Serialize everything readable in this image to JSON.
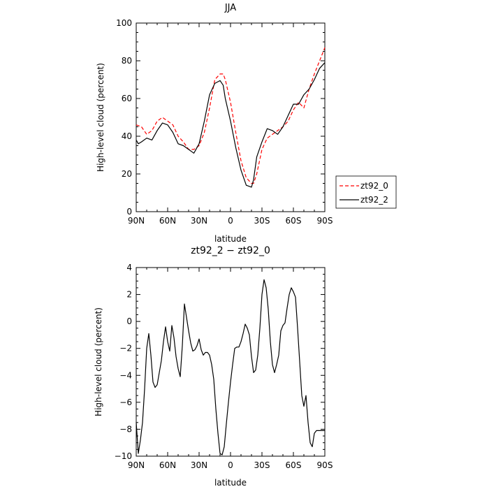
{
  "chart_data": [
    {
      "type": "line",
      "title": "JJA",
      "xlabel": "latitude",
      "ylabel": "High-level cloud (percent)",
      "xlim": [
        -90,
        90
      ],
      "ylim": [
        0,
        100
      ],
      "xticks": [
        -90,
        -60,
        -30,
        0,
        30,
        60,
        90
      ],
      "xticklabels": [
        "90N",
        "60N",
        "30N",
        "0",
        "30S",
        "60S",
        "90S"
      ],
      "yticks": [
        0,
        20,
        40,
        60,
        80,
        100
      ],
      "yticklabels": [
        "0",
        "20",
        "40",
        "60",
        "80",
        "100"
      ],
      "grid": false,
      "legend": "right",
      "series": [
        {
          "name": "zt92_0",
          "color": "#ff0000",
          "dash": "dashed",
          "x": [
            -90,
            -85,
            -80,
            -75,
            -70,
            -65,
            -60,
            -55,
            -50,
            -45,
            -40,
            -35,
            -30,
            -25,
            -20,
            -15,
            -10,
            -7,
            -5,
            0,
            5,
            10,
            15,
            20,
            22,
            25,
            30,
            35,
            40,
            45,
            50,
            55,
            60,
            65,
            70,
            75,
            80,
            85,
            90
          ],
          "values": [
            46,
            45,
            41,
            43,
            48,
            50,
            48,
            46,
            40,
            37,
            33,
            33,
            35,
            42,
            55,
            70,
            73,
            73,
            70,
            58,
            42,
            27,
            18,
            15,
            15,
            20,
            33,
            39,
            41,
            43,
            45,
            48,
            54,
            58,
            55,
            65,
            73,
            80,
            87
          ]
        },
        {
          "name": "zt92_2",
          "color": "#000000",
          "dash": "solid",
          "x": [
            -90,
            -88,
            -85,
            -80,
            -75,
            -70,
            -65,
            -60,
            -55,
            -50,
            -45,
            -40,
            -35,
            -30,
            -25,
            -20,
            -15,
            -10,
            -7,
            -5,
            0,
            5,
            10,
            15,
            20,
            22,
            25,
            30,
            35,
            40,
            45,
            50,
            55,
            60,
            65,
            70,
            75,
            80,
            85,
            90
          ],
          "values": [
            38,
            36,
            37,
            39,
            38,
            43,
            47,
            46,
            42,
            36,
            35,
            33,
            31,
            36,
            48,
            62,
            68,
            69.5,
            67,
            60,
            48,
            34,
            22,
            14,
            13,
            17,
            29,
            37,
            44,
            43,
            41,
            45,
            51,
            57,
            57,
            62,
            65,
            70,
            76,
            79
          ]
        }
      ]
    },
    {
      "type": "line",
      "title": "zt92_2 − zt92_0",
      "xlabel": "latitude",
      "ylabel": "High-level cloud (percent)",
      "xlim": [
        -90,
        90
      ],
      "ylim": [
        -10,
        4
      ],
      "xticks": [
        -90,
        -60,
        -30,
        0,
        30,
        60,
        90
      ],
      "xticklabels": [
        "90N",
        "60N",
        "30N",
        "0",
        "30S",
        "60S",
        "90S"
      ],
      "yticks": [
        -10,
        -8,
        -6,
        -4,
        -2,
        0,
        2,
        4
      ],
      "yticklabels": [
        "−10",
        "−8",
        "−6",
        "−4",
        "−2",
        "0",
        "2",
        "4"
      ],
      "grid": false,
      "series": [
        {
          "color": "#000000",
          "dash": "solid",
          "x": [
            -90,
            -88,
            -86,
            -84,
            -82,
            -80,
            -78,
            -76,
            -74,
            -72,
            -70,
            -68,
            -66,
            -64,
            -62,
            -60,
            -58,
            -56,
            -54,
            -52,
            -50,
            -48,
            -46,
            -44,
            -42,
            -40,
            -38,
            -36,
            -34,
            -32,
            -30,
            -28,
            -26,
            -24,
            -22,
            -20,
            -18,
            -16,
            -14,
            -12,
            -10,
            -8,
            -6,
            -4,
            -2,
            0,
            2,
            4,
            6,
            8,
            10,
            12,
            14,
            16,
            18,
            20,
            22,
            24,
            26,
            28,
            30,
            32,
            34,
            36,
            38,
            40,
            42,
            44,
            46,
            48,
            50,
            52,
            54,
            56,
            58,
            60,
            62,
            64,
            66,
            68,
            70,
            72,
            74,
            76,
            78,
            80,
            82,
            84,
            86,
            88,
            90
          ],
          "values": [
            -7.5,
            -9.8,
            -8.8,
            -7.5,
            -5,
            -2,
            -0.9,
            -2.5,
            -4.5,
            -4.9,
            -4.7,
            -3.8,
            -2.9,
            -1.5,
            -0.4,
            -1.5,
            -2.2,
            -0.3,
            -1.2,
            -2.6,
            -3.5,
            -4.1,
            -1.8,
            1.3,
            0.3,
            -0.7,
            -1.6,
            -2.2,
            -2.1,
            -1.8,
            -1.3,
            -2.1,
            -2.5,
            -2.3,
            -2.3,
            -2.5,
            -3.2,
            -4.3,
            -6.5,
            -8.3,
            -9.8,
            -9.9,
            -9.3,
            -7.6,
            -6,
            -4.5,
            -3.2,
            -2,
            -1.9,
            -1.9,
            -1.5,
            -0.9,
            -0.2,
            -0.5,
            -1,
            -2.6,
            -3.8,
            -3.6,
            -2.5,
            -0.5,
            2.0,
            3.1,
            2.5,
            0.9,
            -1.5,
            -3.2,
            -3.8,
            -3.2,
            -2.5,
            -0.7,
            -0.3,
            -0.1,
            1.0,
            2.0,
            2.5,
            2.2,
            1.8,
            -0.5,
            -3.0,
            -5.5,
            -6.3,
            -5.5,
            -7.5,
            -9.0,
            -9.3,
            -8.3,
            -8.1,
            -8.1,
            -8.1,
            -8.1,
            -8.1
          ]
        }
      ]
    }
  ],
  "legend": {
    "items": [
      {
        "name": "zt92_0",
        "color": "#ff0000",
        "dash": "dashed"
      },
      {
        "name": "zt92_2",
        "color": "#000000",
        "dash": "solid"
      }
    ]
  }
}
